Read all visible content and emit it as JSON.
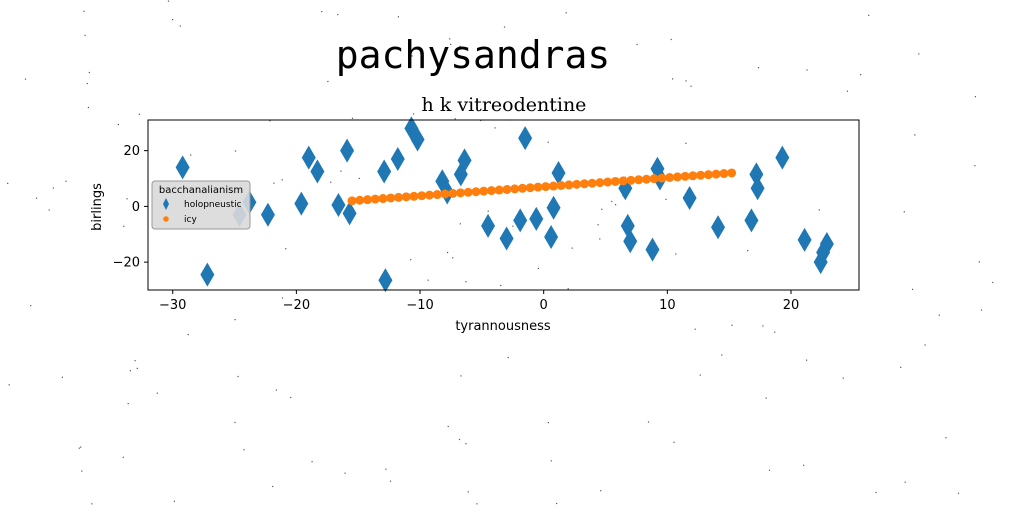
{
  "chart_data": {
    "type": "scatter",
    "suptitle": "pachysandras",
    "title": "h k vitreodentine",
    "xlabel": "tyrannousness",
    "ylabel": "birlings",
    "xlim": [
      -32,
      25.5
    ],
    "ylim": [
      -30,
      31
    ],
    "xticks": [
      -30,
      -20,
      -10,
      0,
      10,
      20
    ],
    "yticks": [
      -20,
      0,
      20
    ],
    "grid": false,
    "legend": {
      "title": "bacchanalianism",
      "placement": "center-left"
    },
    "series": [
      {
        "name": "holopneustic",
        "marker": "thin-diamond",
        "color": "#1f77b4",
        "points": [
          [
            -29.2,
            14
          ],
          [
            -27.2,
            -24.5
          ],
          [
            -24.6,
            -3
          ],
          [
            -23.8,
            1.5
          ],
          [
            -22.3,
            -3
          ],
          [
            -19.6,
            1
          ],
          [
            -19,
            17.5
          ],
          [
            -18.3,
            12.5
          ],
          [
            -16.6,
            0.5
          ],
          [
            -15.9,
            20
          ],
          [
            -15.7,
            -2.5
          ],
          [
            -12.9,
            12.5
          ],
          [
            -12.8,
            -26.5
          ],
          [
            -11.8,
            17
          ],
          [
            -10.7,
            28
          ],
          [
            -10.2,
            24
          ],
          [
            -8.2,
            9
          ],
          [
            -7.8,
            5
          ],
          [
            -6.7,
            11.5
          ],
          [
            -6.4,
            16.5
          ],
          [
            -4.5,
            -7
          ],
          [
            -3,
            -11.5
          ],
          [
            -1.9,
            -5
          ],
          [
            -1.5,
            24.5
          ],
          [
            -0.6,
            -4.5
          ],
          [
            0.6,
            -11
          ],
          [
            0.8,
            -0.5
          ],
          [
            1.2,
            12
          ],
          [
            6.6,
            6.5
          ],
          [
            6.8,
            -7
          ],
          [
            7,
            -12.5
          ],
          [
            8.8,
            -15.5
          ],
          [
            9.2,
            13.5
          ],
          [
            9.4,
            10
          ],
          [
            11.8,
            3
          ],
          [
            14.1,
            -7.5
          ],
          [
            16.8,
            -5
          ],
          [
            17.2,
            11.5
          ],
          [
            17.3,
            6.5
          ],
          [
            19.3,
            17.5
          ],
          [
            21.1,
            -12
          ],
          [
            22.4,
            -20
          ],
          [
            22.6,
            -16.5
          ],
          [
            22.9,
            -13.5
          ]
        ]
      },
      {
        "name": "icy",
        "marker": "circle",
        "color": "#ff7f0e",
        "line": {
          "x_start": -15.5,
          "x_end": 15.2,
          "y_start": 2,
          "y_end": 12,
          "count": 50
        }
      }
    ],
    "noise_dots": true
  }
}
